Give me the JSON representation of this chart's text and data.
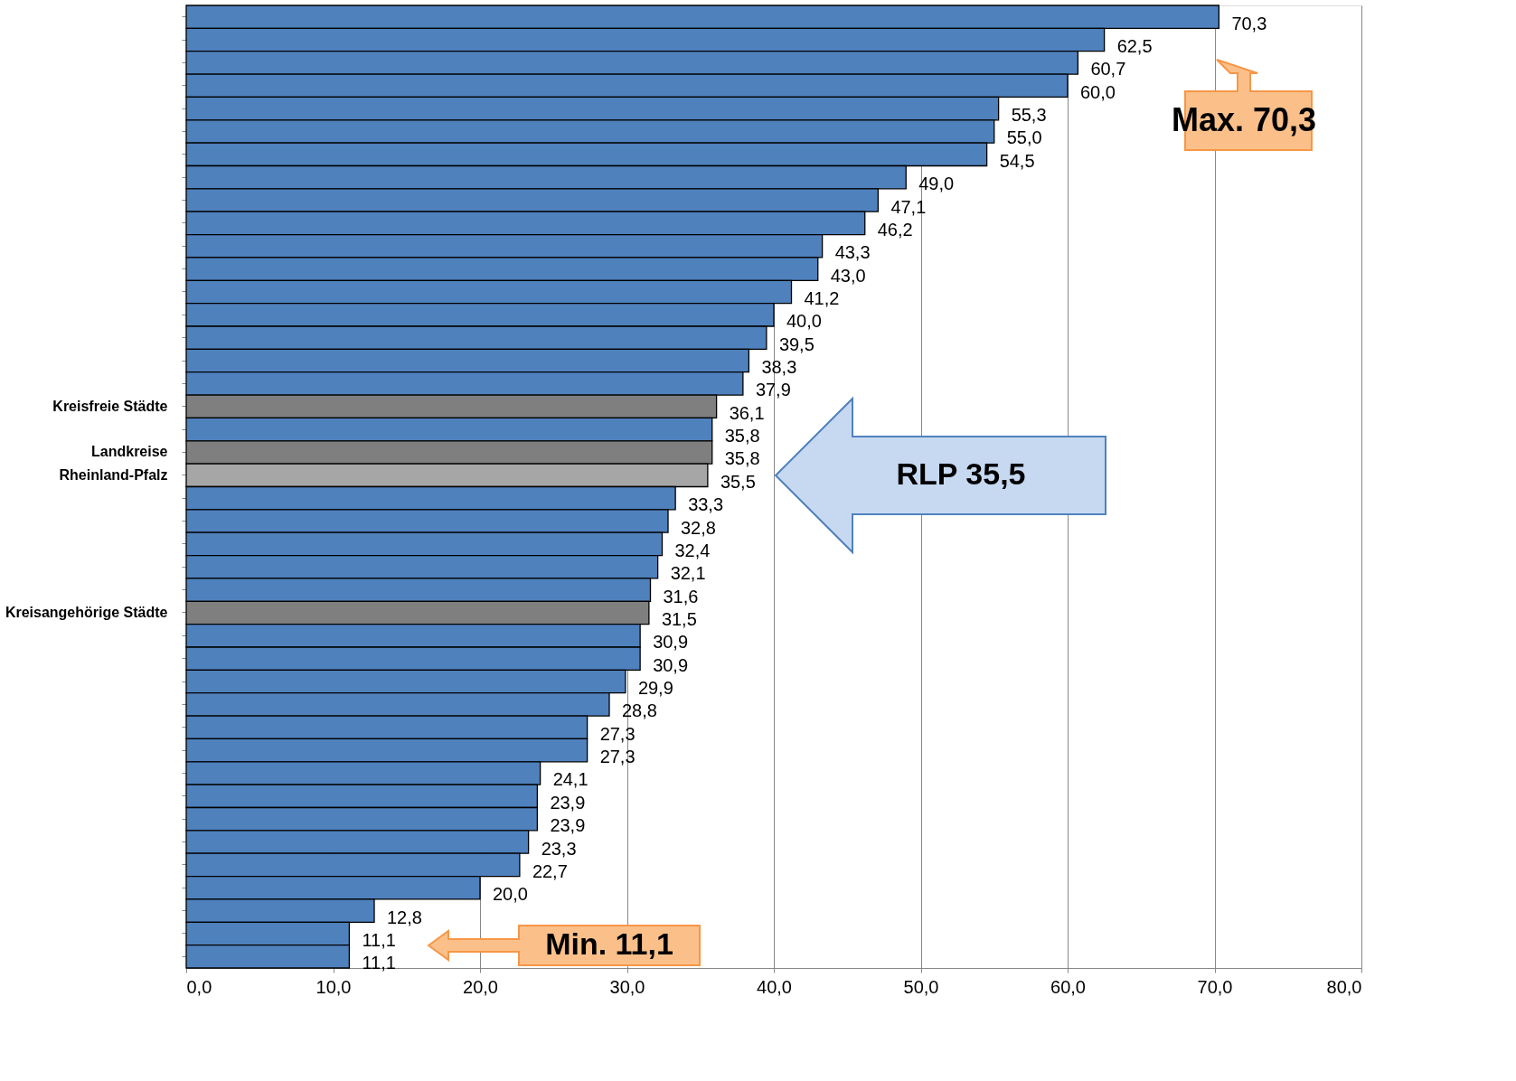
{
  "chart_data": {
    "type": "bar",
    "orientation": "horizontal",
    "categories": [
      null,
      null,
      null,
      null,
      null,
      null,
      null,
      null,
      null,
      null,
      null,
      null,
      null,
      null,
      null,
      null,
      null,
      "Kreisfreie Städte",
      null,
      "Landkreise",
      "Rheinland-Pfalz",
      null,
      null,
      null,
      null,
      null,
      "Kreisangehörige Städte",
      null,
      null,
      null,
      null,
      null,
      null,
      null,
      null,
      null,
      null,
      null,
      null,
      null,
      null,
      null
    ],
    "values": [
      70.3,
      62.5,
      60.7,
      60.0,
      55.3,
      55.0,
      54.5,
      49.0,
      47.1,
      46.2,
      43.3,
      43.0,
      41.2,
      40.0,
      39.5,
      38.3,
      37.9,
      36.1,
      35.8,
      35.8,
      35.5,
      33.3,
      32.8,
      32.4,
      32.1,
      31.6,
      31.5,
      30.9,
      30.9,
      29.9,
      28.8,
      27.3,
      27.3,
      24.1,
      23.9,
      23.9,
      23.3,
      22.7,
      20.0,
      12.8,
      11.1,
      11.1
    ],
    "value_labels": [
      "70,3",
      "62,5",
      "60,7",
      "60,0",
      "55,3",
      "55,0",
      "54,5",
      "49,0",
      "47,1",
      "46,2",
      "43,3",
      "43,0",
      "41,2",
      "40,0",
      "39,5",
      "38,3",
      "37,9",
      "36,1",
      "35,8",
      "35,8",
      "35,5",
      "33,3",
      "32,8",
      "32,4",
      "32,1",
      "31,6",
      "31,5",
      "30,9",
      "30,9",
      "29,9",
      "28,8",
      "27,3",
      "27,3",
      "24,1",
      "23,9",
      "23,9",
      "23,3",
      "22,7",
      "20,0",
      "12,8",
      "11,1",
      "11,1"
    ],
    "colors": [
      "#4f81bd",
      "#4f81bd",
      "#4f81bd",
      "#4f81bd",
      "#4f81bd",
      "#4f81bd",
      "#4f81bd",
      "#4f81bd",
      "#4f81bd",
      "#4f81bd",
      "#4f81bd",
      "#4f81bd",
      "#4f81bd",
      "#4f81bd",
      "#4f81bd",
      "#4f81bd",
      "#4f81bd",
      "#7f7f7f",
      "#4f81bd",
      "#7f7f7f",
      "#a6a6a6",
      "#4f81bd",
      "#4f81bd",
      "#4f81bd",
      "#4f81bd",
      "#4f81bd",
      "#7f7f7f",
      "#4f81bd",
      "#4f81bd",
      "#4f81bd",
      "#4f81bd",
      "#4f81bd",
      "#4f81bd",
      "#4f81bd",
      "#4f81bd",
      "#4f81bd",
      "#4f81bd",
      "#4f81bd",
      "#4f81bd",
      "#4f81bd",
      "#4f81bd",
      "#4f81bd"
    ],
    "xlim": [
      0,
      80
    ],
    "xticks": [
      {
        "value": 0,
        "label": "0,0"
      },
      {
        "value": 10,
        "label": "10,0"
      },
      {
        "value": 20,
        "label": "20,0"
      },
      {
        "value": 30,
        "label": "30,0"
      },
      {
        "value": 40,
        "label": "40,0"
      },
      {
        "value": 50,
        "label": "50,0"
      },
      {
        "value": 60,
        "label": "60,0"
      },
      {
        "value": 70,
        "label": "70,0"
      },
      {
        "value": 80,
        "label": "80,0"
      }
    ],
    "grid": "x",
    "annotations": [
      "Max. 70,3",
      "RLP 35,5",
      "Min. 11,1"
    ]
  }
}
